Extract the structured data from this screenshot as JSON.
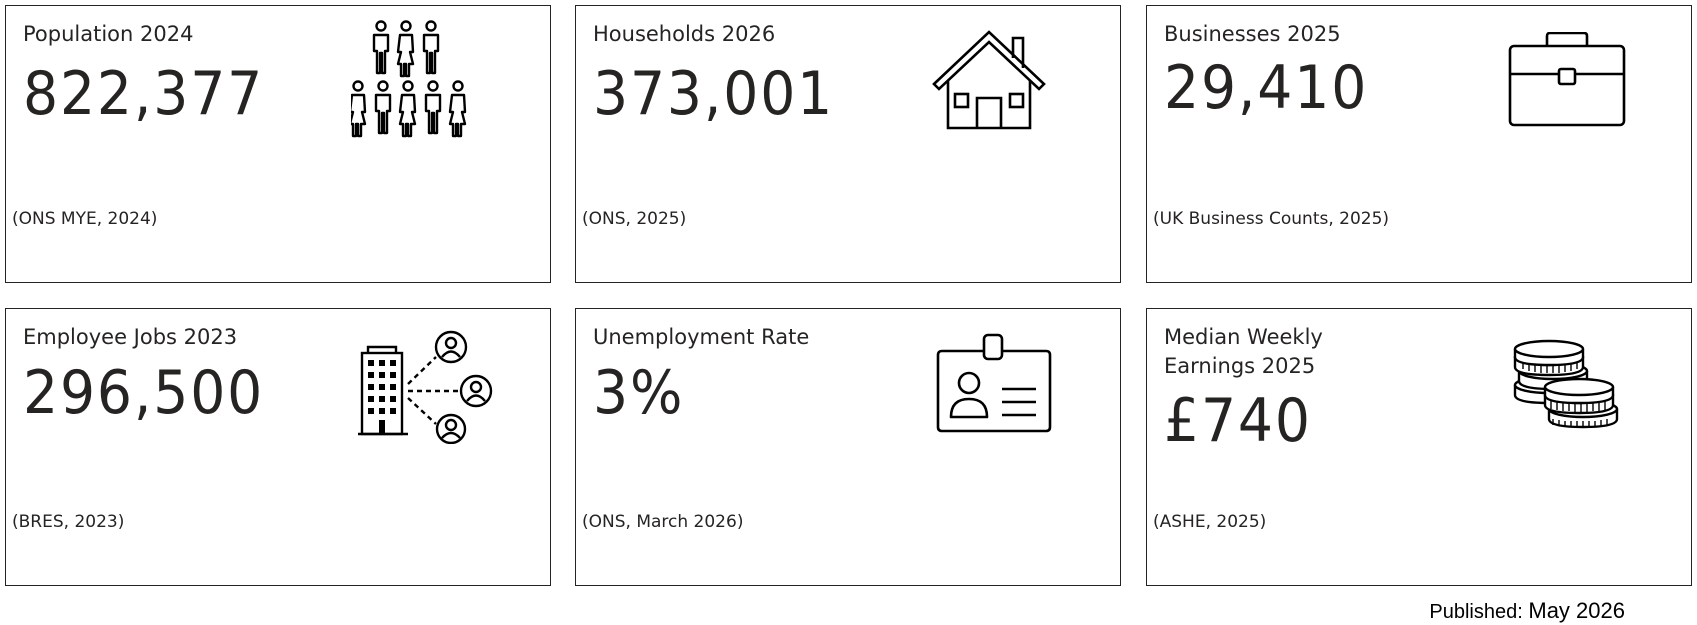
{
  "cards": [
    {
      "title": "Population 2024",
      "value": "822,377",
      "source": "(ONS MYE, 2024)",
      "icon": "people-group-icon"
    },
    {
      "title": "Households 2026",
      "value": "373,001",
      "source": "(ONS, 2025)",
      "icon": "house-icon"
    },
    {
      "title": "Businesses 2025",
      "value": "29,410",
      "source": "(UK Business Counts, 2025)",
      "icon": "briefcase-icon"
    },
    {
      "title": "Employee Jobs 2023",
      "value": "296,500",
      "source": "(BRES, 2023)",
      "icon": "office-building-network-icon"
    },
    {
      "title": "Unemployment Rate",
      "value": "3%",
      "source": "(ONS, March 2026)",
      "icon": "id-badge-icon"
    },
    {
      "title": "Median Weekly Earnings 2025",
      "value": "£740",
      "source": "(ASHE, 2025)",
      "icon": "coins-icon"
    }
  ],
  "footer": {
    "published_label": "Published:",
    "published_date": "May 2026"
  },
  "colors": {
    "text": "#252423",
    "border": "#252423",
    "icon_stroke": "#000000",
    "background": "#ffffff"
  }
}
